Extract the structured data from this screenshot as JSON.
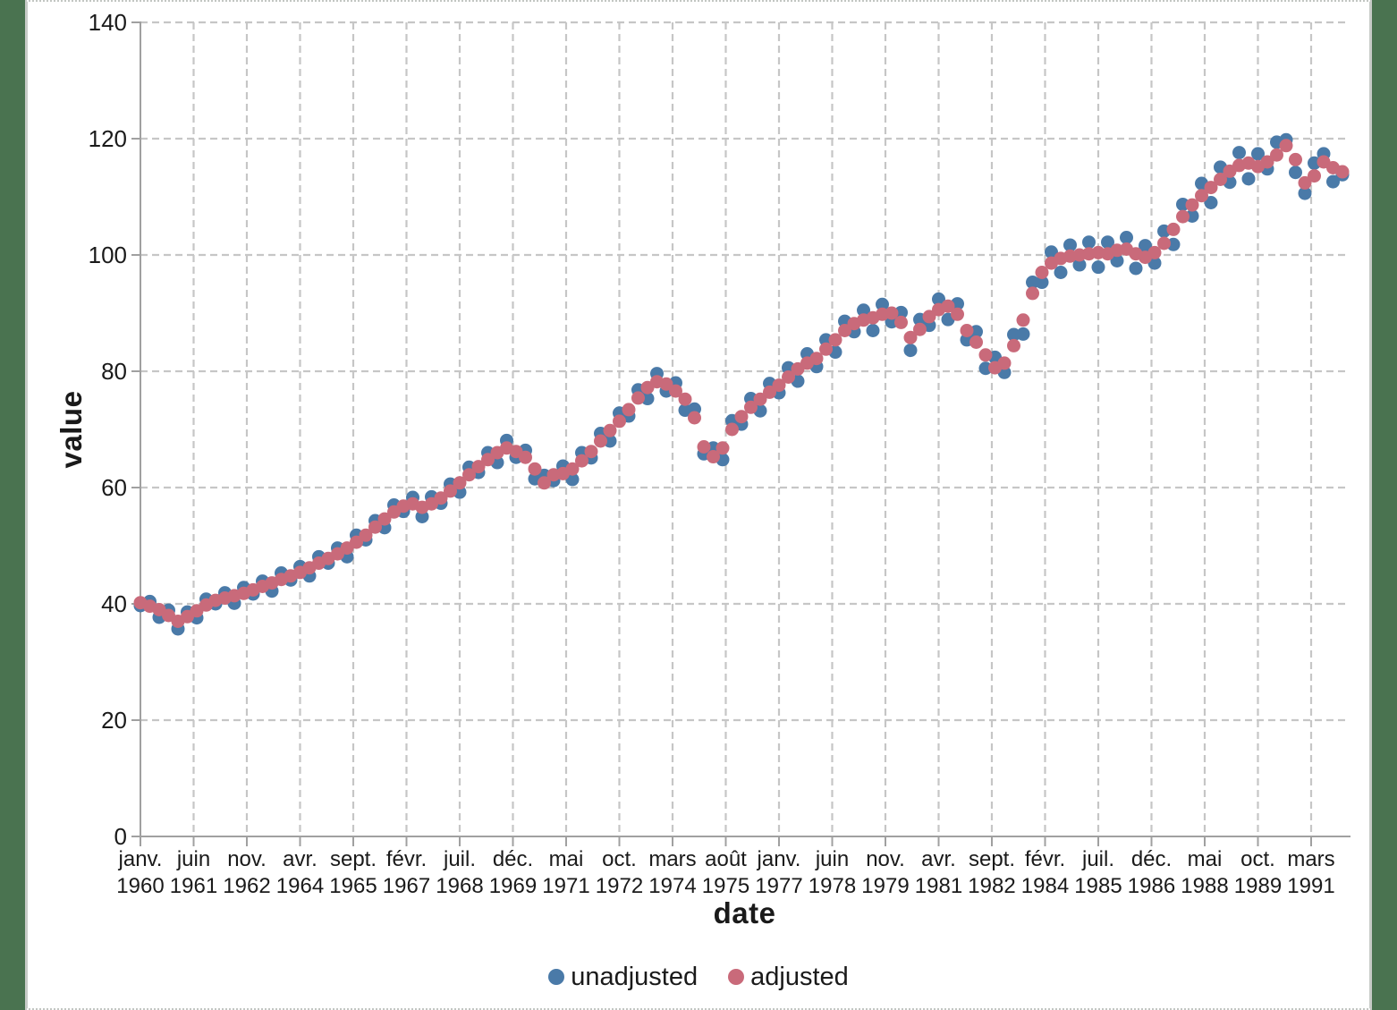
{
  "chart_data": {
    "type": "scatter",
    "title": "",
    "xlabel": "date",
    "ylabel": "value",
    "ylim": [
      0,
      140
    ],
    "y_ticks": [
      0,
      20,
      40,
      60,
      80,
      100,
      120,
      140
    ],
    "grid": "both-dashed",
    "legend_position": "bottom-center",
    "x_start": "1960-01",
    "x_step_months": 3,
    "x_tick_interval_months": 17,
    "x_ticks": [
      {
        "m": "janv.",
        "y": "1960"
      },
      {
        "m": "juin",
        "y": "1961"
      },
      {
        "m": "nov.",
        "y": "1962"
      },
      {
        "m": "avr.",
        "y": "1964"
      },
      {
        "m": "sept.",
        "y": "1965"
      },
      {
        "m": "févr.",
        "y": "1967"
      },
      {
        "m": "juil.",
        "y": "1968"
      },
      {
        "m": "déc.",
        "y": "1969"
      },
      {
        "m": "mai",
        "y": "1971"
      },
      {
        "m": "oct.",
        "y": "1972"
      },
      {
        "m": "mars",
        "y": "1974"
      },
      {
        "m": "août",
        "y": "1975"
      },
      {
        "m": "janv.",
        "y": "1977"
      },
      {
        "m": "juin",
        "y": "1978"
      },
      {
        "m": "nov.",
        "y": "1979"
      },
      {
        "m": "avr.",
        "y": "1981"
      },
      {
        "m": "sept.",
        "y": "1982"
      },
      {
        "m": "févr.",
        "y": "1984"
      },
      {
        "m": "juil.",
        "y": "1985"
      },
      {
        "m": "déc.",
        "y": "1986"
      },
      {
        "m": "mai",
        "y": "1988"
      },
      {
        "m": "oct.",
        "y": "1989"
      },
      {
        "m": "mars",
        "y": "1991"
      }
    ],
    "legend": [
      {
        "label": "unadjusted",
        "color": "#4a7aa8"
      },
      {
        "label": "adjusted",
        "color": "#c96a7a"
      }
    ],
    "series": [
      {
        "name": "unadjusted",
        "color": "#4a7aa8",
        "values": [
          39.7,
          40.4,
          37.7,
          38.9,
          35.7,
          38.6,
          37.6,
          40.8,
          40.0,
          41.9,
          40.1,
          42.8,
          41.7,
          43.9,
          42.2,
          45.3,
          44.1,
          46.4,
          44.8,
          48.1,
          47.0,
          49.6,
          48.1,
          51.8,
          51.0,
          54.3,
          53.1,
          57.0,
          55.9,
          58.3,
          55.0,
          58.4,
          57.3,
          60.6,
          59.2,
          63.5,
          62.6,
          66.0,
          64.3,
          68.1,
          65.2,
          66.4,
          61.5,
          62.1,
          61.2,
          63.7,
          61.4,
          66.0,
          65.1,
          69.3,
          68.0,
          72.8,
          72.3,
          76.8,
          75.3,
          79.6,
          76.6,
          78.0,
          73.3,
          73.5,
          65.8,
          66.8,
          64.8,
          71.5,
          70.9,
          75.3,
          73.2,
          77.9,
          76.3,
          80.6,
          78.3,
          83.0,
          80.8,
          85.4,
          83.3,
          88.6,
          86.8,
          90.5,
          87.0,
          91.5,
          88.5,
          90.1,
          83.6,
          88.9,
          87.9,
          92.4,
          88.9,
          91.6,
          85.4,
          86.8,
          80.5,
          82.4,
          79.8,
          86.3,
          86.4,
          95.3,
          95.3,
          100.5,
          97.0,
          101.7,
          98.3,
          102.2,
          97.9,
          102.2,
          99.0,
          103.0,
          97.7,
          101.6,
          98.6,
          104.1,
          101.8,
          108.7,
          106.7,
          112.3,
          109.0,
          115.1,
          112.5,
          117.6,
          113.1,
          117.4,
          114.8,
          119.4,
          119.8,
          114.2,
          110.6,
          115.8,
          117.4,
          112.6,
          113.8
        ]
      },
      {
        "name": "adjusted",
        "color": "#c96a7a",
        "values": [
          40.2,
          39.6,
          39.0,
          38.0,
          37.0,
          37.8,
          38.8,
          39.8,
          40.6,
          41.0,
          41.4,
          41.8,
          42.4,
          43.0,
          43.6,
          44.2,
          44.8,
          45.4,
          46.2,
          47.0,
          47.8,
          48.6,
          49.6,
          50.6,
          51.8,
          53.2,
          54.6,
          55.8,
          56.8,
          57.2,
          56.6,
          57.2,
          58.2,
          59.4,
          60.8,
          62.2,
          63.6,
          64.8,
          66.0,
          66.8,
          66.2,
          65.2,
          63.2,
          60.8,
          62.2,
          62.4,
          63.2,
          64.6,
          66.2,
          68.0,
          69.8,
          71.4,
          73.4,
          75.4,
          77.2,
          78.2,
          77.8,
          76.6,
          75.2,
          72.0,
          67.0,
          65.3,
          66.8,
          70.0,
          72.2,
          73.8,
          75.2,
          76.4,
          77.6,
          79.0,
          80.4,
          81.4,
          82.2,
          83.8,
          85.4,
          87.0,
          88.2,
          88.8,
          89.2,
          89.8,
          90.0,
          88.4,
          85.8,
          87.2,
          89.4,
          90.6,
          91.2,
          89.8,
          87.0,
          85.0,
          82.8,
          80.6,
          81.4,
          84.4,
          88.8,
          93.4,
          97.0,
          98.6,
          99.4,
          99.8,
          100.0,
          100.2,
          100.4,
          100.2,
          100.8,
          101.0,
          100.2,
          99.6,
          100.4,
          102.0,
          104.4,
          106.6,
          108.6,
          110.2,
          111.6,
          113.0,
          114.4,
          115.4,
          115.8,
          115.2,
          116.0,
          117.2,
          118.8,
          116.4,
          112.4,
          113.6,
          116.0,
          115.0,
          114.3
        ]
      }
    ],
    "colors": {
      "grid": "#c6c6c6",
      "axis": "#a0a0a0",
      "text": "#1a1a1a",
      "page_background": "#4a7350",
      "panel_background": "#ffffff"
    }
  }
}
